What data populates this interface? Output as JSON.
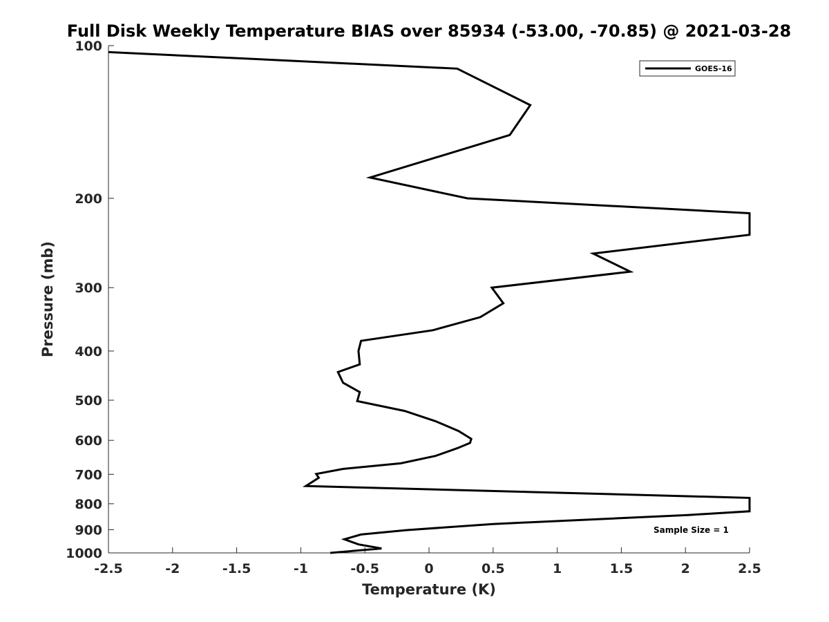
{
  "chart_data": {
    "type": "line",
    "title": "Full Disk Weekly Temperature BIAS over 85934 (-53.00, -70.85) @ 2021-03-28",
    "xlabel": "Temperature (K)",
    "ylabel": "Pressure (mb)",
    "xlim": [
      -2.5,
      2.5
    ],
    "ylim": [
      100,
      1000
    ],
    "y_scale": "log",
    "y_reversed": true,
    "grid": false,
    "legend_position": "top-right",
    "x_ticks": [
      -2.5,
      -2,
      -1.5,
      -1,
      -0.5,
      0,
      0.5,
      1,
      1.5,
      2,
      2.5
    ],
    "x_tick_labels": [
      "-2.5",
      "-2",
      "-1.5",
      "-1",
      "-0.5",
      "0",
      "0.5",
      "1",
      "1.5",
      "2",
      "2.5"
    ],
    "y_ticks": [
      100,
      200,
      300,
      400,
      500,
      600,
      700,
      800,
      900,
      1000
    ],
    "y_tick_labels": [
      "100",
      "200",
      "300",
      "400",
      "500",
      "600",
      "700",
      "800",
      "900",
      "1000"
    ],
    "annotation": "Sample Size = 1",
    "series": [
      {
        "name": "GOES-16",
        "color": "#000000",
        "points": [
          {
            "x": -2.5,
            "y": 103
          },
          {
            "x": 0.22,
            "y": 111
          },
          {
            "x": 0.79,
            "y": 131
          },
          {
            "x": 0.63,
            "y": 150
          },
          {
            "x": -0.46,
            "y": 182
          },
          {
            "x": 0.3,
            "y": 200
          },
          {
            "x": 2.5,
            "y": 214
          },
          {
            "x": 2.5,
            "y": 236
          },
          {
            "x": 1.28,
            "y": 257
          },
          {
            "x": 1.57,
            "y": 279
          },
          {
            "x": 0.49,
            "y": 300
          },
          {
            "x": 0.58,
            "y": 322
          },
          {
            "x": 0.4,
            "y": 343
          },
          {
            "x": 0.03,
            "y": 364
          },
          {
            "x": -0.53,
            "y": 382
          },
          {
            "x": -0.55,
            "y": 400
          },
          {
            "x": -0.54,
            "y": 425
          },
          {
            "x": -0.71,
            "y": 440
          },
          {
            "x": -0.67,
            "y": 462
          },
          {
            "x": -0.54,
            "y": 482
          },
          {
            "x": -0.56,
            "y": 502
          },
          {
            "x": -0.19,
            "y": 525
          },
          {
            "x": 0.05,
            "y": 550
          },
          {
            "x": 0.23,
            "y": 575
          },
          {
            "x": 0.33,
            "y": 596
          },
          {
            "x": 0.32,
            "y": 607
          },
          {
            "x": 0.22,
            "y": 622
          },
          {
            "x": 0.05,
            "y": 644
          },
          {
            "x": -0.22,
            "y": 666
          },
          {
            "x": -0.67,
            "y": 683
          },
          {
            "x": -0.88,
            "y": 699
          },
          {
            "x": -0.86,
            "y": 711
          },
          {
            "x": -0.96,
            "y": 738
          },
          {
            "x": 2.5,
            "y": 779
          },
          {
            "x": 2.5,
            "y": 828
          },
          {
            "x": 2.02,
            "y": 842
          },
          {
            "x": 0.5,
            "y": 877
          },
          {
            "x": -0.18,
            "y": 902
          },
          {
            "x": -0.53,
            "y": 920
          },
          {
            "x": -0.66,
            "y": 940
          },
          {
            "x": -0.55,
            "y": 962
          },
          {
            "x": -0.37,
            "y": 980
          },
          {
            "x": -0.77,
            "y": 1000
          }
        ]
      }
    ]
  }
}
